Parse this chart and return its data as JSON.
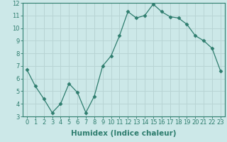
{
  "x": [
    0,
    1,
    2,
    3,
    4,
    5,
    6,
    7,
    8,
    9,
    10,
    11,
    12,
    13,
    14,
    15,
    16,
    17,
    18,
    19,
    20,
    21,
    22,
    23
  ],
  "y": [
    6.7,
    5.4,
    4.4,
    3.3,
    4.0,
    5.6,
    4.9,
    3.3,
    4.6,
    7.0,
    7.8,
    9.4,
    11.3,
    10.8,
    11.0,
    11.9,
    11.3,
    10.9,
    10.8,
    10.3,
    9.4,
    9.0,
    8.4,
    6.6
  ],
  "xlabel": "Humidex (Indice chaleur)",
  "ylim": [
    3,
    12
  ],
  "xlim_min": -0.5,
  "xlim_max": 23.5,
  "yticks": [
    3,
    4,
    5,
    6,
    7,
    8,
    9,
    10,
    11,
    12
  ],
  "xticks": [
    0,
    1,
    2,
    3,
    4,
    5,
    6,
    7,
    8,
    9,
    10,
    11,
    12,
    13,
    14,
    15,
    16,
    17,
    18,
    19,
    20,
    21,
    22,
    23
  ],
  "line_color": "#2e7d6e",
  "marker": "D",
  "marker_size": 2.5,
  "bg_color": "#cce8e8",
  "grid_color": "#b8d4d4",
  "tick_label_fontsize": 6,
  "xlabel_fontsize": 7.5
}
